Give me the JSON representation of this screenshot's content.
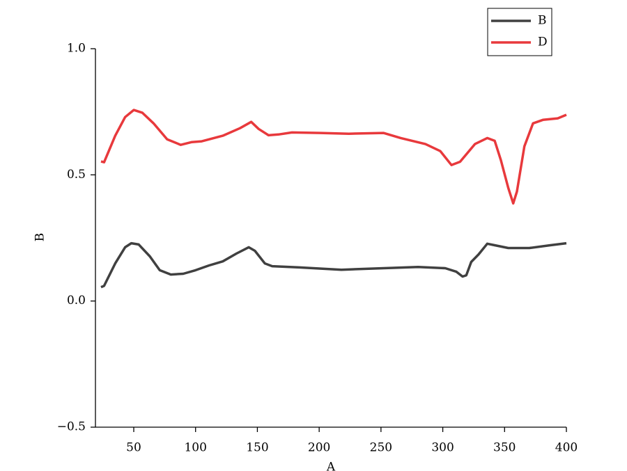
{
  "chart_data": {
    "type": "line",
    "xlabel": "A",
    "ylabel": "B",
    "xlim": [
      19,
      400
    ],
    "ylim": [
      -0.5,
      1
    ],
    "xticks": [
      50,
      100,
      150,
      200,
      250,
      300,
      350,
      400
    ],
    "yticks": [
      {
        "value": -0.5,
        "label": "−0.5"
      },
      {
        "value": 0,
        "label": "0.0"
      },
      0.5,
      {
        "value": 1,
        "label": "1.0"
      }
    ],
    "legend": "upper right",
    "series": [
      {
        "name": "B",
        "color": "#404040",
        "x": [
          23.5,
          26,
          35,
          43,
          48,
          54,
          63,
          71,
          80,
          90,
          100,
          111,
          122,
          133,
          143,
          148,
          156,
          162,
          184,
          218,
          252,
          280,
          302,
          311,
          316,
          319,
          323,
          329,
          336,
          342,
          353,
          370,
          387,
          400
        ],
        "values": [
          0.055,
          0.06,
          0.149,
          0.213,
          0.229,
          0.224,
          0.177,
          0.122,
          0.105,
          0.108,
          0.122,
          0.141,
          0.157,
          0.188,
          0.213,
          0.199,
          0.149,
          0.138,
          0.133,
          0.124,
          0.13,
          0.135,
          0.13,
          0.116,
          0.097,
          0.102,
          0.155,
          0.185,
          0.227,
          0.221,
          0.21,
          0.21,
          0.221,
          0.229
        ]
      },
      {
        "name": "D",
        "color": "#e8393c",
        "x": [
          23.5,
          26,
          35,
          43,
          50,
          57,
          66,
          77,
          88,
          97,
          105,
          122,
          136,
          145,
          151,
          159,
          167,
          178,
          201,
          224,
          252,
          266,
          286,
          298,
          307,
          314,
          326,
          336,
          342,
          347,
          353,
          357,
          360,
          366,
          373,
          381,
          393,
          400
        ],
        "values": [
          0.553,
          0.55,
          0.655,
          0.729,
          0.757,
          0.746,
          0.704,
          0.641,
          0.619,
          0.63,
          0.633,
          0.655,
          0.685,
          0.71,
          0.682,
          0.657,
          0.66,
          0.668,
          0.666,
          0.663,
          0.666,
          0.646,
          0.622,
          0.594,
          0.539,
          0.552,
          0.622,
          0.646,
          0.635,
          0.558,
          0.448,
          0.387,
          0.434,
          0.613,
          0.704,
          0.718,
          0.724,
          0.738
        ]
      }
    ]
  }
}
